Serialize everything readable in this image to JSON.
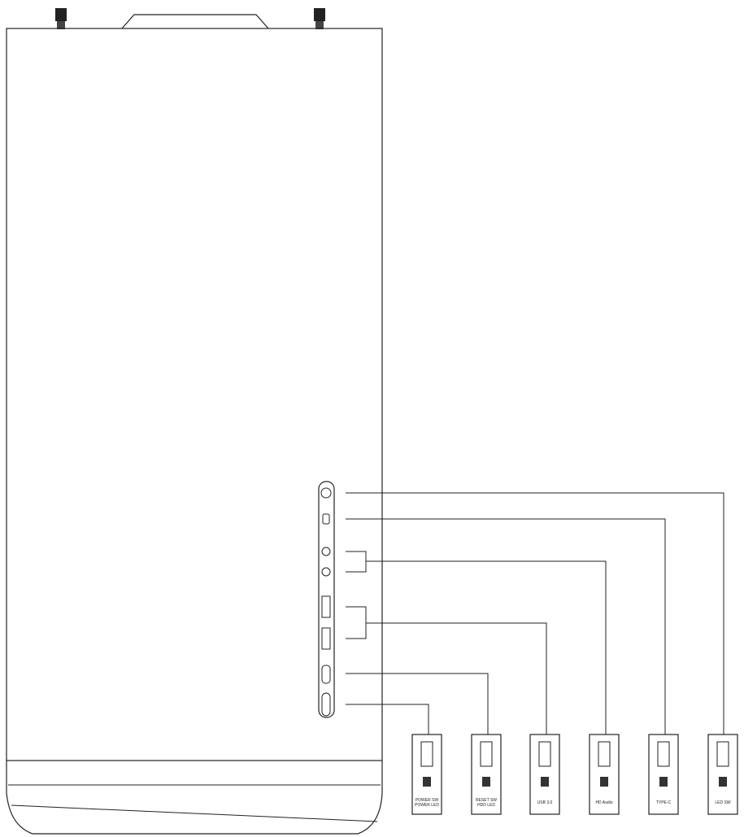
{
  "connectors": [
    {
      "lines": [
        "POWER SW",
        "POWER LED"
      ]
    },
    {
      "lines": [
        "RESET SW",
        "HDD LED"
      ]
    },
    {
      "lines": [
        "USB 3.0"
      ]
    },
    {
      "lines": [
        "HD Audio"
      ]
    },
    {
      "lines": [
        "TYPE-C"
      ]
    },
    {
      "lines": [
        "LED SW"
      ]
    }
  ]
}
